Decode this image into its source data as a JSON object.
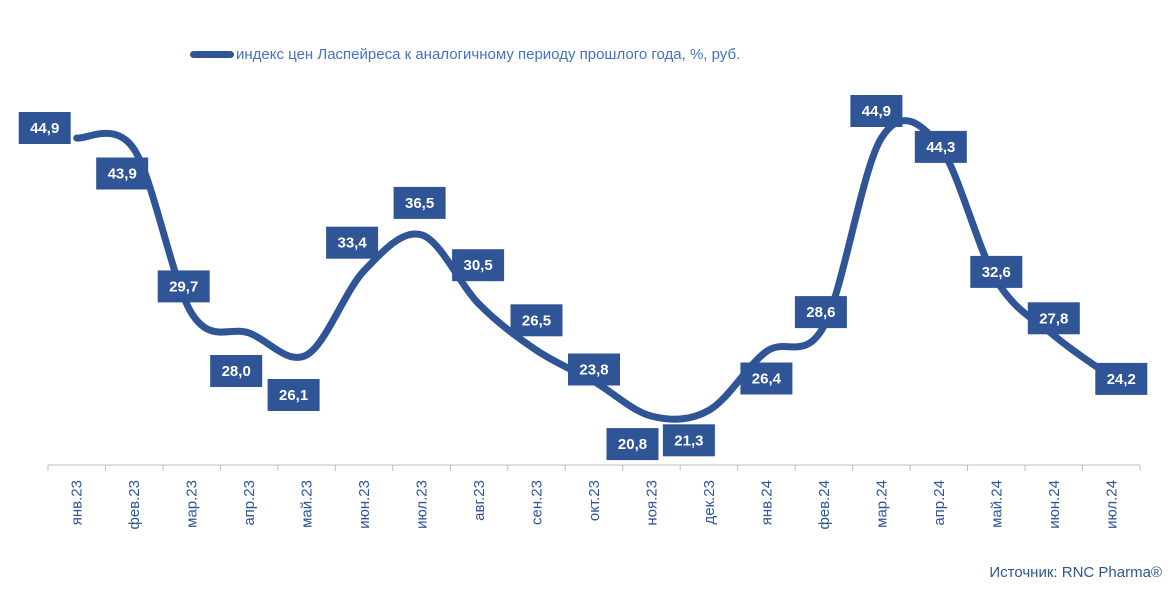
{
  "chart_data": {
    "type": "line",
    "categories": [
      "янв.23",
      "фев.23",
      "мар.23",
      "апр.23",
      "май.23",
      "июн.23",
      "июл.23",
      "авг.23",
      "сен.23",
      "окт.23",
      "ноя.23",
      "дек.23",
      "янв.24",
      "фев.24",
      "мар.24",
      "апр.24",
      "май.24",
      "июн.24",
      "июл.24"
    ],
    "series": [
      {
        "name": "индекс цен Ласпейреса к аналогичному периоду прошлого года, %, руб.",
        "values": [
          44.9,
          43.9,
          29.7,
          28.0,
          26.1,
          33.4,
          36.5,
          30.5,
          26.5,
          23.8,
          20.8,
          21.3,
          26.4,
          28.6,
          44.9,
          44.3,
          32.6,
          27.8,
          24.2
        ],
        "labels": [
          "44,9",
          "43,9",
          "29,7",
          "28,0",
          "26,1",
          "33,4",
          "36,5",
          "30,5",
          "26,5",
          "23,8",
          "20,8",
          "21,3",
          "26,4",
          "28,6",
          "44,9",
          "44,3",
          "32,6",
          "27,8",
          "24,2"
        ],
        "color": "#2F5597"
      }
    ],
    "legend_position": "top",
    "grid": false,
    "label_color": "#2F5597"
  },
  "source": "Источник: RNC Pharma®"
}
